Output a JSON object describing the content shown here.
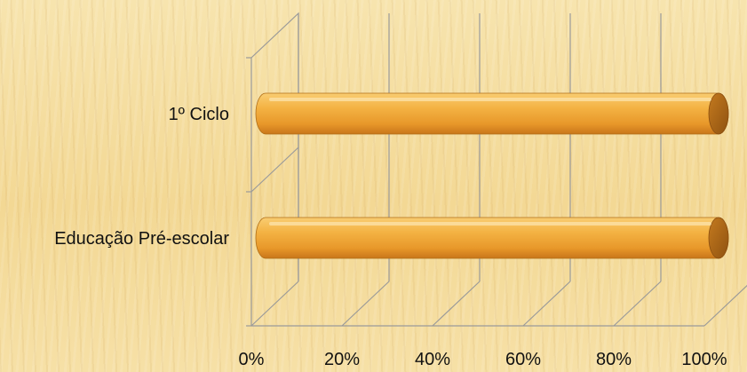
{
  "chart_data": {
    "type": "bar",
    "orientation": "horizontal",
    "three_d": true,
    "categories": [
      "1º Ciclo",
      "Educação Pré-escolar"
    ],
    "values": [
      100,
      100
    ],
    "xlim": [
      0,
      100
    ],
    "x_ticks": [
      "0%",
      "20%",
      "40%",
      "60%",
      "80%",
      "100%"
    ],
    "grid": true,
    "bar_color": "#f0a531"
  }
}
